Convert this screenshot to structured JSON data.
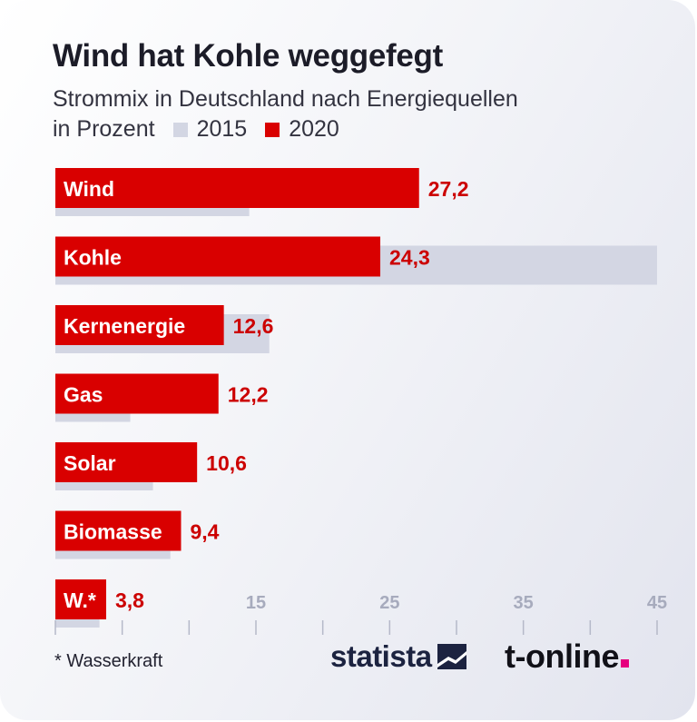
{
  "title": "Wind hat Kohle weggefegt",
  "subtitle": "Strommix in Deutschland nach Energiequellen",
  "unit": "in Prozent",
  "legend": [
    {
      "label": "2015",
      "color": "#d3d6e3"
    },
    {
      "label": "2020",
      "color": "#d90000"
    }
  ],
  "footnote": "* Wasserkraft",
  "brand_statista": "statista",
  "brand_tonline": "t-online",
  "chart_data": {
    "type": "bar",
    "orientation": "horizontal",
    "categories": [
      "Wind",
      "Kohle",
      "Kernenergie",
      "Gas",
      "Solar",
      "Biomasse",
      "W.*"
    ],
    "series": [
      {
        "name": "2015",
        "color": "#d3d6e3",
        "values": [
          14.5,
          45.0,
          16.0,
          5.6,
          7.3,
          8.6,
          3.3
        ]
      },
      {
        "name": "2020",
        "color": "#d90000",
        "values": [
          27.2,
          24.3,
          12.6,
          12.2,
          10.6,
          9.4,
          3.8
        ],
        "labels": [
          "27,2",
          "24,3",
          "12,6",
          "12,2",
          "10,6",
          "9,4",
          "3,8"
        ]
      }
    ],
    "xlim": [
      0,
      45
    ],
    "xticks": [
      15,
      25,
      35,
      45
    ],
    "grid": false,
    "legend_position": "top-left"
  }
}
